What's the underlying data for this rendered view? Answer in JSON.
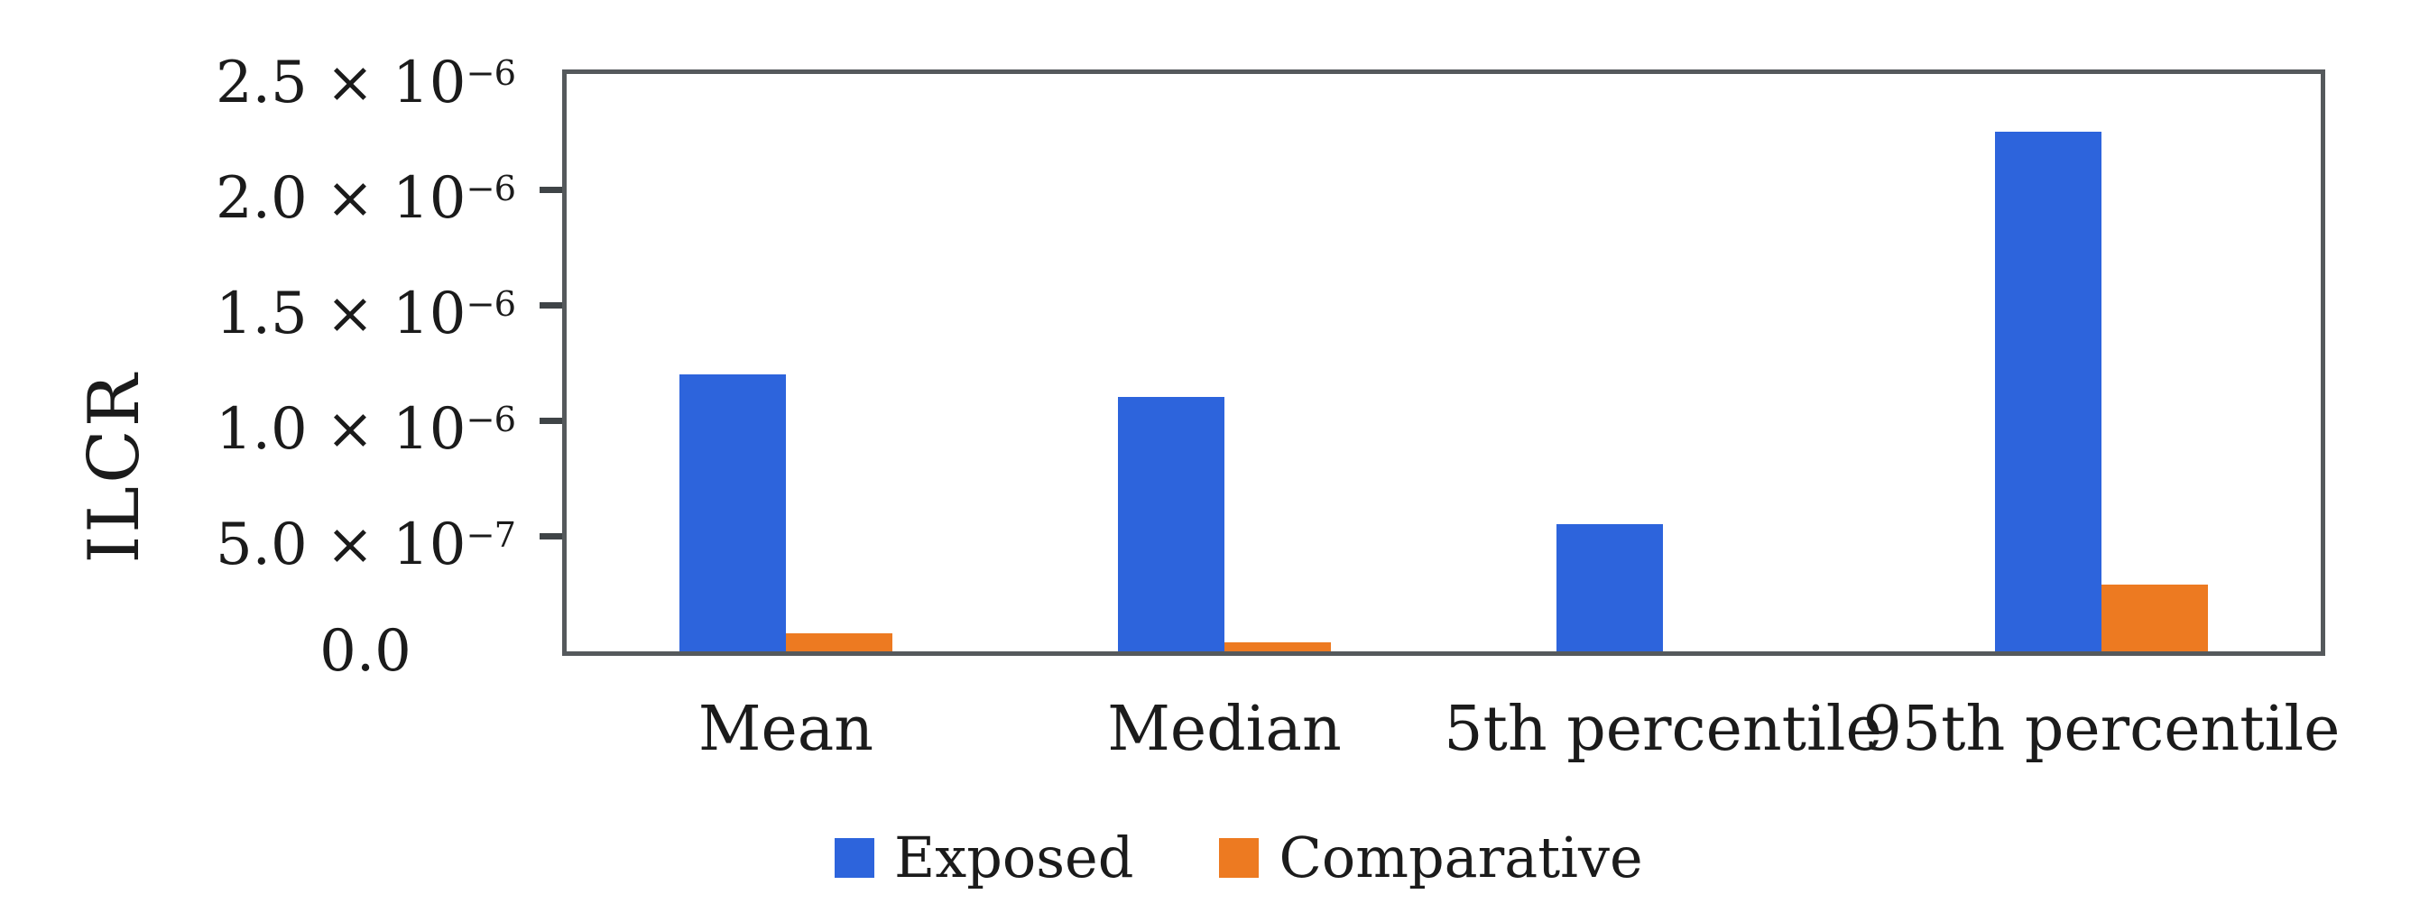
{
  "figure": {
    "background_color": "#ffffff",
    "text_color": "#1b1b1b",
    "axis_color": "#55595c",
    "tick_color": "#3f4447"
  },
  "chart_data": {
    "type": "bar",
    "title": "",
    "xlabel": "",
    "ylabel": "ILCR",
    "categories": [
      "Mean",
      "Median",
      "5th percentile",
      "95th percentile"
    ],
    "series": [
      {
        "name": "Exposed",
        "color": "#2d64dc",
        "values": [
          1.2e-06,
          1.1e-06,
          5.5e-07,
          2.25e-06
        ]
      },
      {
        "name": "Comparative",
        "color": "#ed7a21",
        "values": [
          8e-08,
          4e-08,
          0,
          2.9e-07
        ]
      }
    ],
    "ylim": [
      0,
      2.5e-06
    ],
    "grid": false,
    "legend_position": "bottom",
    "y_ticks": [
      {
        "value": 2.5e-06,
        "base": "2.5 × 10",
        "sup": "−6"
      },
      {
        "value": 2e-06,
        "base": "2.0 × 10",
        "sup": "−6"
      },
      {
        "value": 1.5e-06,
        "base": "1.5 × 10",
        "sup": "−6"
      },
      {
        "value": 1e-06,
        "base": "1.0 × 10",
        "sup": "−6"
      },
      {
        "value": 5e-07,
        "base": "5.0 × 10",
        "sup": "−7"
      },
      {
        "value": 0,
        "base": "0.0",
        "sup": ""
      }
    ],
    "legend": [
      {
        "label": "Exposed",
        "color": "#2d64dc"
      },
      {
        "label": "Comparative",
        "color": "#ed7a21"
      }
    ]
  }
}
